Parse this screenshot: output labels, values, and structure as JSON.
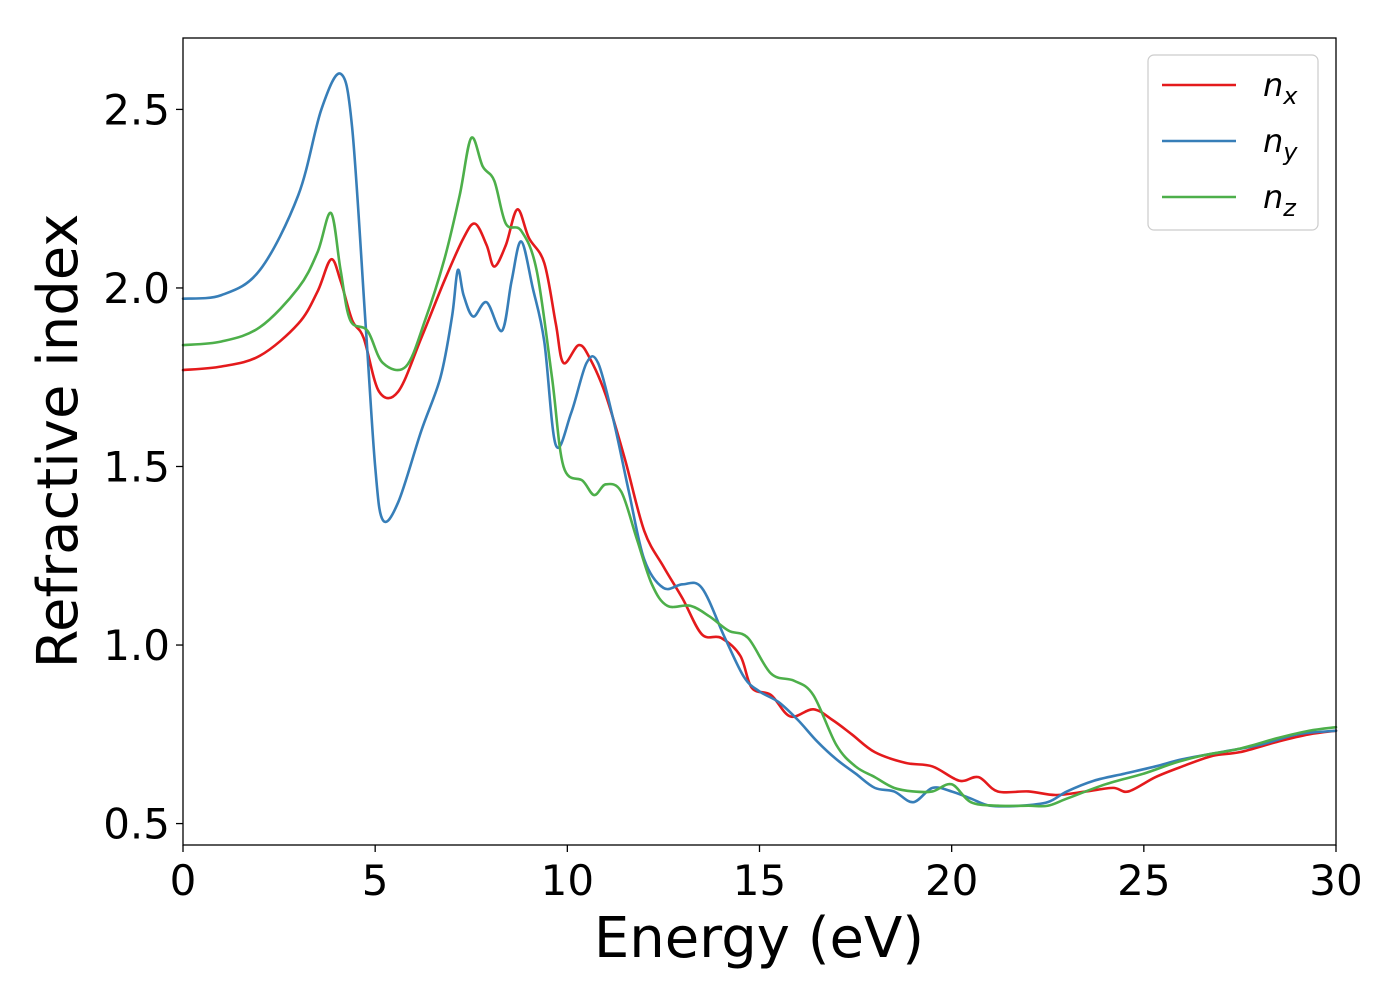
{
  "chart_data": {
    "type": "line",
    "title": "",
    "xlabel": "Energy (eV)",
    "ylabel": "Refractive index",
    "xlim": [
      0,
      30
    ],
    "ylim": [
      0.44,
      2.7
    ],
    "xticks": [
      0,
      5,
      10,
      15,
      20,
      25,
      30
    ],
    "yticks": [
      0.5,
      1.0,
      1.5,
      2.0,
      2.5
    ],
    "xtick_labels": [
      "0",
      "5",
      "10",
      "15",
      "20",
      "25",
      "30"
    ],
    "ytick_labels": [
      "0.5",
      "1.0",
      "1.5",
      "2.0",
      "2.5"
    ],
    "grid": false,
    "legend_position": "top-right",
    "series": [
      {
        "name": "n_x",
        "label_main": "n",
        "label_sub": "x",
        "color": "#e41a1c",
        "points": [
          [
            0,
            1.77
          ],
          [
            1,
            1.78
          ],
          [
            2,
            1.81
          ],
          [
            3,
            1.9
          ],
          [
            3.5,
            1.99
          ],
          [
            3.85,
            2.08
          ],
          [
            4.1,
            2.02
          ],
          [
            4.4,
            1.91
          ],
          [
            4.7,
            1.86
          ],
          [
            5.1,
            1.71
          ],
          [
            5.6,
            1.71
          ],
          [
            6.2,
            1.86
          ],
          [
            6.8,
            2.02
          ],
          [
            7.3,
            2.14
          ],
          [
            7.6,
            2.18
          ],
          [
            7.9,
            2.12
          ],
          [
            8.1,
            2.06
          ],
          [
            8.4,
            2.12
          ],
          [
            8.7,
            2.22
          ],
          [
            9.0,
            2.14
          ],
          [
            9.4,
            2.07
          ],
          [
            9.7,
            1.9
          ],
          [
            9.9,
            1.79
          ],
          [
            10.3,
            1.84
          ],
          [
            10.6,
            1.8
          ],
          [
            11.0,
            1.7
          ],
          [
            11.5,
            1.52
          ],
          [
            12.0,
            1.32
          ],
          [
            12.5,
            1.22
          ],
          [
            13.0,
            1.13
          ],
          [
            13.5,
            1.03
          ],
          [
            14.0,
            1.02
          ],
          [
            14.5,
            0.97
          ],
          [
            14.8,
            0.88
          ],
          [
            15.3,
            0.86
          ],
          [
            15.8,
            0.8
          ],
          [
            16.4,
            0.82
          ],
          [
            16.9,
            0.79
          ],
          [
            17.4,
            0.75
          ],
          [
            18.0,
            0.7
          ],
          [
            18.8,
            0.67
          ],
          [
            19.5,
            0.66
          ],
          [
            20.2,
            0.62
          ],
          [
            20.7,
            0.63
          ],
          [
            21.2,
            0.59
          ],
          [
            22.0,
            0.59
          ],
          [
            22.7,
            0.58
          ],
          [
            23.5,
            0.59
          ],
          [
            24.2,
            0.6
          ],
          [
            24.6,
            0.59
          ],
          [
            25.3,
            0.63
          ],
          [
            26.0,
            0.66
          ],
          [
            26.8,
            0.69
          ],
          [
            27.5,
            0.7
          ],
          [
            28.5,
            0.73
          ],
          [
            29.3,
            0.75
          ],
          [
            30.0,
            0.76
          ]
        ]
      },
      {
        "name": "n_y",
        "label_main": "n",
        "label_sub": "y",
        "color": "#377eb8",
        "points": [
          [
            0,
            1.97
          ],
          [
            1,
            1.98
          ],
          [
            2,
            2.05
          ],
          [
            3,
            2.26
          ],
          [
            3.6,
            2.5
          ],
          [
            4.1,
            2.6
          ],
          [
            4.4,
            2.45
          ],
          [
            4.75,
            1.9
          ],
          [
            5.0,
            1.5
          ],
          [
            5.2,
            1.35
          ],
          [
            5.6,
            1.4
          ],
          [
            6.2,
            1.6
          ],
          [
            6.7,
            1.75
          ],
          [
            7.0,
            1.92
          ],
          [
            7.15,
            2.05
          ],
          [
            7.3,
            1.98
          ],
          [
            7.55,
            1.92
          ],
          [
            7.9,
            1.96
          ],
          [
            8.3,
            1.88
          ],
          [
            8.55,
            2.02
          ],
          [
            8.8,
            2.13
          ],
          [
            9.1,
            2.0
          ],
          [
            9.4,
            1.85
          ],
          [
            9.7,
            1.56
          ],
          [
            10.1,
            1.65
          ],
          [
            10.5,
            1.79
          ],
          [
            10.8,
            1.79
          ],
          [
            11.2,
            1.63
          ],
          [
            11.6,
            1.43
          ],
          [
            12.0,
            1.24
          ],
          [
            12.5,
            1.16
          ],
          [
            13.0,
            1.17
          ],
          [
            13.5,
            1.16
          ],
          [
            14.1,
            1.02
          ],
          [
            14.6,
            0.91
          ],
          [
            15.0,
            0.87
          ],
          [
            15.5,
            0.84
          ],
          [
            16.0,
            0.79
          ],
          [
            16.5,
            0.73
          ],
          [
            17.0,
            0.68
          ],
          [
            17.5,
            0.64
          ],
          [
            18.0,
            0.6
          ],
          [
            18.5,
            0.59
          ],
          [
            19.0,
            0.56
          ],
          [
            19.5,
            0.6
          ],
          [
            20.0,
            0.59
          ],
          [
            20.5,
            0.57
          ],
          [
            21.0,
            0.55
          ],
          [
            21.8,
            0.55
          ],
          [
            22.5,
            0.56
          ],
          [
            23.0,
            0.59
          ],
          [
            23.7,
            0.62
          ],
          [
            24.5,
            0.64
          ],
          [
            25.3,
            0.66
          ],
          [
            26.0,
            0.68
          ],
          [
            27.0,
            0.7
          ],
          [
            28.0,
            0.72
          ],
          [
            29.0,
            0.75
          ],
          [
            30.0,
            0.76
          ]
        ]
      },
      {
        "name": "n_z",
        "label_main": "n",
        "label_sub": "z",
        "color": "#4daf4a",
        "points": [
          [
            0,
            1.84
          ],
          [
            1,
            1.85
          ],
          [
            2,
            1.89
          ],
          [
            3,
            2.0
          ],
          [
            3.5,
            2.1
          ],
          [
            3.85,
            2.21
          ],
          [
            4.1,
            2.05
          ],
          [
            4.35,
            1.91
          ],
          [
            4.8,
            1.88
          ],
          [
            5.2,
            1.79
          ],
          [
            5.8,
            1.78
          ],
          [
            6.3,
            1.91
          ],
          [
            6.8,
            2.08
          ],
          [
            7.2,
            2.26
          ],
          [
            7.5,
            2.42
          ],
          [
            7.8,
            2.34
          ],
          [
            8.1,
            2.3
          ],
          [
            8.4,
            2.18
          ],
          [
            8.8,
            2.16
          ],
          [
            9.2,
            2.05
          ],
          [
            9.6,
            1.75
          ],
          [
            9.9,
            1.5
          ],
          [
            10.4,
            1.46
          ],
          [
            10.7,
            1.42
          ],
          [
            11.0,
            1.45
          ],
          [
            11.4,
            1.43
          ],
          [
            11.8,
            1.3
          ],
          [
            12.2,
            1.17
          ],
          [
            12.6,
            1.11
          ],
          [
            13.2,
            1.11
          ],
          [
            13.7,
            1.08
          ],
          [
            14.2,
            1.04
          ],
          [
            14.7,
            1.02
          ],
          [
            15.3,
            0.92
          ],
          [
            15.9,
            0.9
          ],
          [
            16.4,
            0.86
          ],
          [
            17.0,
            0.72
          ],
          [
            17.5,
            0.66
          ],
          [
            18.0,
            0.63
          ],
          [
            18.5,
            0.6
          ],
          [
            19.0,
            0.59
          ],
          [
            19.5,
            0.59
          ],
          [
            20.0,
            0.61
          ],
          [
            20.5,
            0.56
          ],
          [
            21.2,
            0.55
          ],
          [
            22.0,
            0.55
          ],
          [
            22.5,
            0.55
          ],
          [
            23.0,
            0.57
          ],
          [
            24.0,
            0.61
          ],
          [
            25.0,
            0.64
          ],
          [
            25.8,
            0.67
          ],
          [
            26.5,
            0.69
          ],
          [
            27.5,
            0.71
          ],
          [
            28.5,
            0.74
          ],
          [
            29.3,
            0.76
          ],
          [
            30.0,
            0.77
          ]
        ]
      }
    ]
  }
}
